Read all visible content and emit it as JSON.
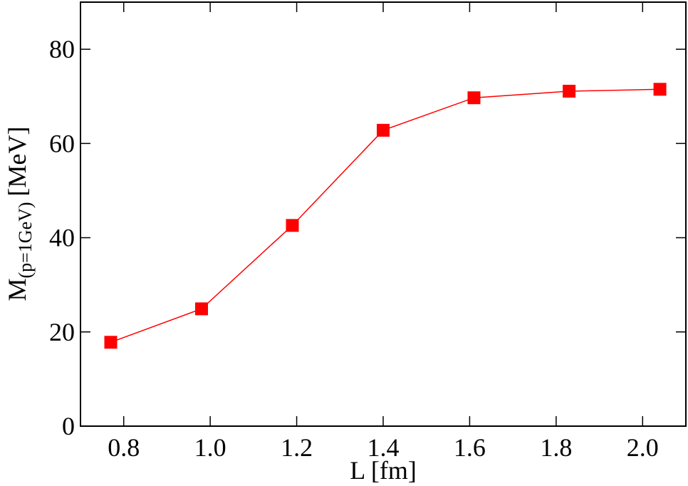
{
  "chart_data": {
    "type": "line",
    "x_label": "L [fm]",
    "y_label": {
      "main": "M",
      "subscript": "(p=1GeV)",
      "unit": "[MeV]"
    },
    "x": [
      0.77,
      0.98,
      1.19,
      1.4,
      1.61,
      1.83,
      2.04
    ],
    "series": [
      {
        "color": "#ff0000",
        "values": [
          17.8,
          24.9,
          42.6,
          62.8,
          69.7,
          71.1,
          71.5
        ]
      }
    ],
    "xlim": [
      0.7,
      2.1
    ],
    "xticks": [
      0.8,
      {
        "value": 1,
        "label": "1.0"
      },
      1.2,
      1.4,
      1.6,
      1.8,
      {
        "value": 2,
        "label": "2.0"
      }
    ],
    "ylim": [
      0,
      90
    ],
    "yticks": [
      0,
      20,
      40,
      60,
      80
    ]
  }
}
